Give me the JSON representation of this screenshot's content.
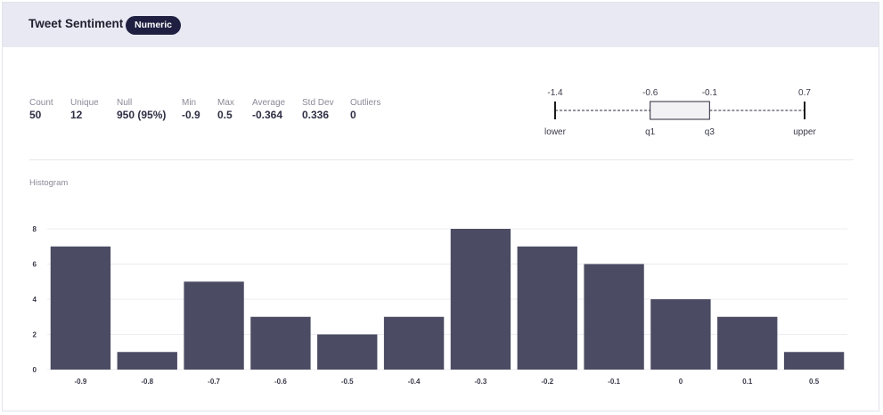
{
  "header": {
    "title": "Tweet Sentiment",
    "badge": "Numeric"
  },
  "stats": [
    {
      "label": "Count",
      "value": "50"
    },
    {
      "label": "Unique",
      "value": "12"
    },
    {
      "label": "Null",
      "value": "950 (95%)"
    },
    {
      "label": "Min",
      "value": "-0.9"
    },
    {
      "label": "Max",
      "value": "0.5"
    },
    {
      "label": "Average",
      "value": "-0.364"
    },
    {
      "label": "Std Dev",
      "value": "0.336"
    },
    {
      "label": "Outliers",
      "value": "0"
    }
  ],
  "boxplot": {
    "lower": -1.4,
    "q1": -0.6,
    "q3": -0.1,
    "upper": 0.7,
    "value_labels": [
      "-1.4",
      "-0.6",
      "-0.1",
      "0.7"
    ],
    "names": [
      "lower",
      "q1",
      "q3",
      "upper"
    ]
  },
  "histogram_title": "Histogram",
  "colors": {
    "bar": "#4b4c63",
    "header_bg": "#e9e9f3",
    "badge_bg": "#1f2041"
  },
  "chart_data": {
    "type": "bar",
    "categories": [
      "-0.9",
      "-0.8",
      "-0.7",
      "-0.6",
      "-0.5",
      "-0.4",
      "-0.3",
      "-0.2",
      "-0.1",
      "0",
      "0.1",
      "0.5"
    ],
    "values": [
      7,
      1,
      5,
      3,
      2,
      3,
      8,
      7,
      6,
      4,
      3,
      1
    ],
    "ylim": [
      0,
      8
    ],
    "yticks": [
      0,
      2,
      4,
      6,
      8
    ],
    "grid": true
  }
}
